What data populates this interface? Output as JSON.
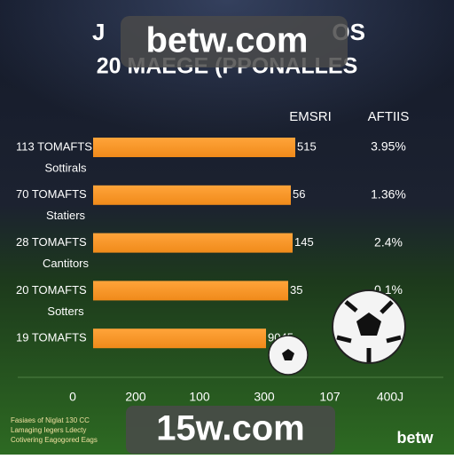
{
  "header": {
    "watermark": "betw.com",
    "title_left": "J",
    "title_right": "OS",
    "subtitle": "20 MAEGE (PPONALLES"
  },
  "columns": {
    "middle": "EMSRI",
    "right": "AFTIIS"
  },
  "rows": [
    {
      "label": "113 TOMAFTS",
      "value": "515",
      "percent": "3.95%",
      "sublabel": "Sottirals"
    },
    {
      "label": "70 TOMAFTS",
      "value": "56",
      "percent": "1.36%",
      "sublabel": "Statiers"
    },
    {
      "label": "28 TOMAFTS",
      "value": "145",
      "percent": "2.4%",
      "sublabel": "Cantitors"
    },
    {
      "label": "20 TOMAFTS",
      "value": "35",
      "percent": "0.1%",
      "sublabel": "Sotters"
    },
    {
      "label": "19 TOMAFTS",
      "value": "9045"
    }
  ],
  "axis": [
    "0",
    "200",
    "100",
    "300",
    "107",
    "400J"
  ],
  "footnotes": [
    "Fasiaes of Niglat 130 CC",
    "Lamaging Iegers Ldecty",
    "Cotivering Eagogored Eags"
  ],
  "footer": {
    "watermark": "15w.com",
    "logo": "betw"
  }
}
